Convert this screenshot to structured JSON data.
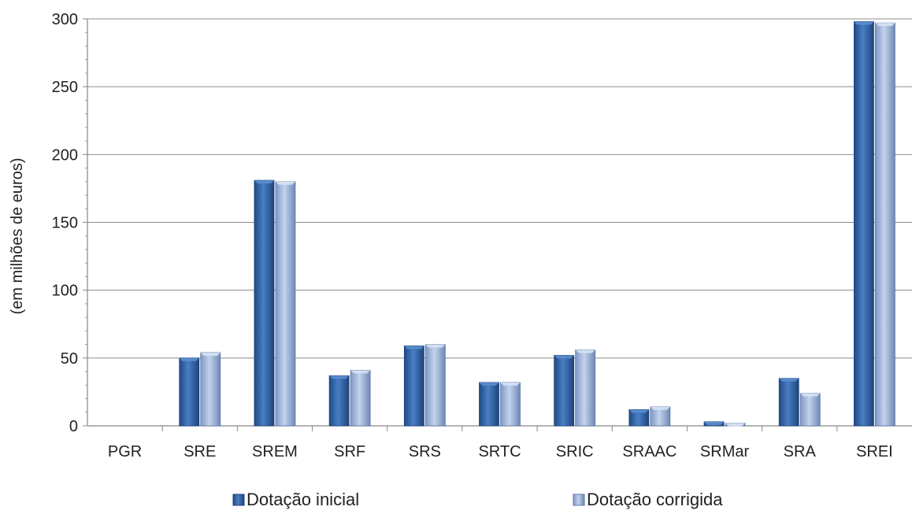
{
  "chart_data": {
    "type": "bar",
    "title": "",
    "xlabel": "",
    "ylabel": "(em milhões de euros)",
    "ylim": [
      0,
      300
    ],
    "yticks": [
      0,
      50,
      100,
      150,
      200,
      250,
      300
    ],
    "grid": true,
    "legend_position": "bottom",
    "categories": [
      "PGR",
      "SRE",
      "SREM",
      "SRF",
      "SRS",
      "SRTC",
      "SRIC",
      "SRAAC",
      "SRMar",
      "SRA",
      "SREI"
    ],
    "series": [
      {
        "name": "Dotação inicial",
        "color": "#2f5f9e",
        "values": [
          0,
          50,
          181,
          37,
          59,
          32,
          52,
          12,
          3,
          35,
          298
        ]
      },
      {
        "name": "Dotação corrigida",
        "color": "#8fa8d2",
        "values": [
          0,
          54,
          180,
          41,
          60,
          32,
          56,
          14,
          2,
          24,
          297
        ]
      }
    ]
  }
}
